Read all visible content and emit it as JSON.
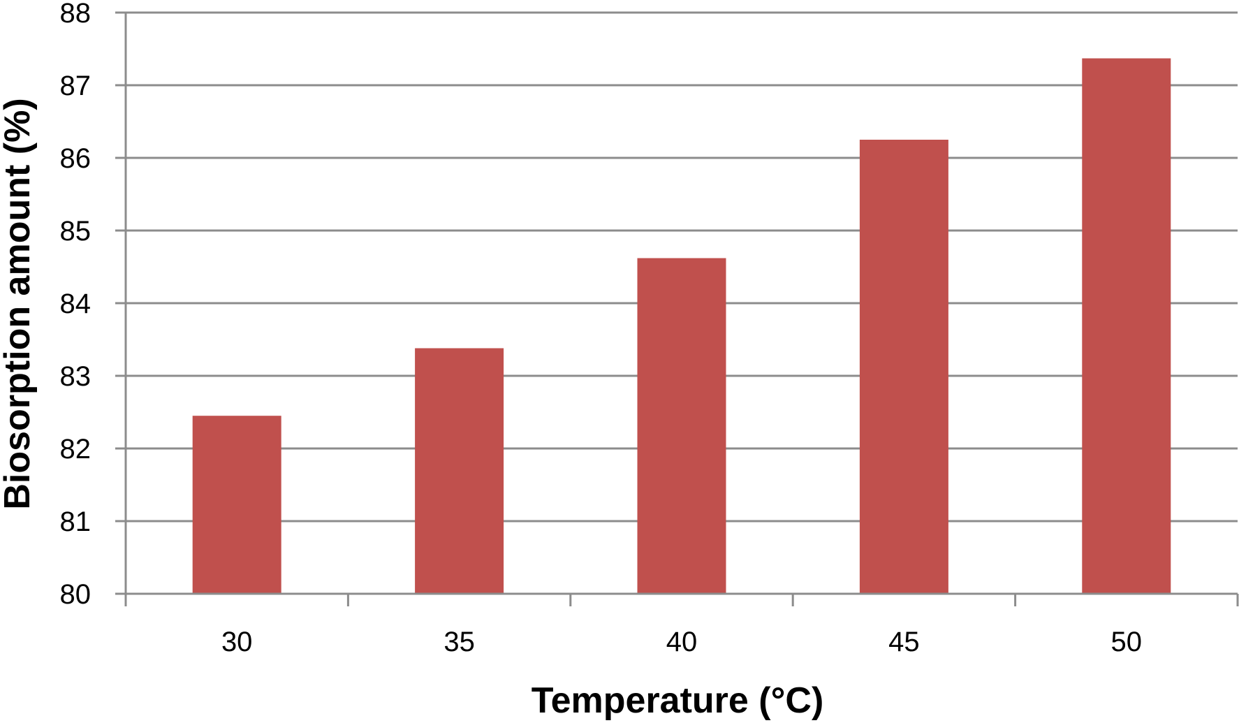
{
  "chart_data": {
    "type": "bar",
    "categories": [
      "30",
      "35",
      "40",
      "45",
      "50"
    ],
    "series": [
      {
        "values": [
          82.45,
          83.38,
          84.62,
          86.25,
          87.37
        ],
        "color": "#c0504d"
      }
    ],
    "title": "",
    "xlabel": "Temperature (°C)",
    "ylabel": "Biosorption amount (%)",
    "ylim": [
      80,
      88
    ],
    "yticks": [
      "80",
      "81",
      "82",
      "83",
      "84",
      "85",
      "86",
      "87",
      "88"
    ],
    "grid": true,
    "legend": "none"
  }
}
